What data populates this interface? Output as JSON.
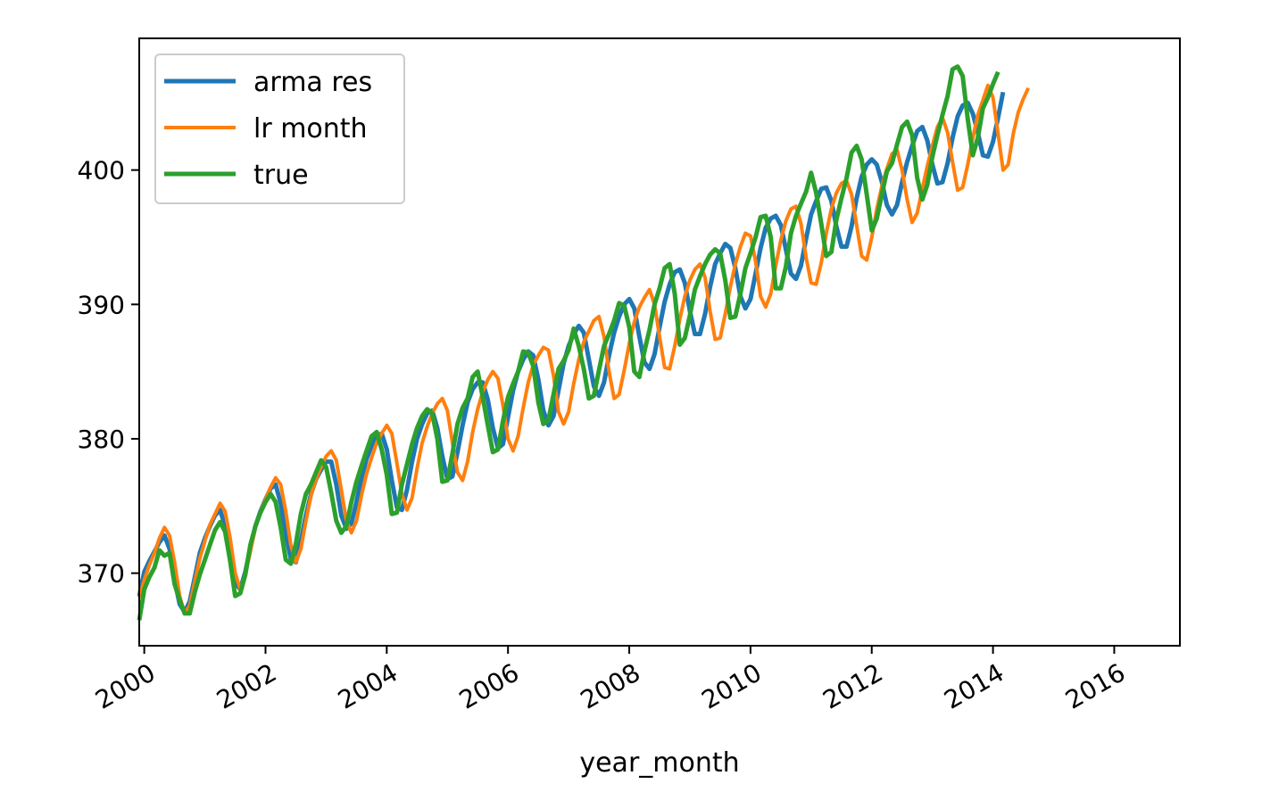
{
  "chart_data": {
    "type": "line",
    "title": "",
    "xlabel": "year_month",
    "ylabel": "",
    "x_unit": "year",
    "xlim": [
      1999.917,
      2017.083
    ],
    "ylim": [
      364.6,
      409.8
    ],
    "x_ticks": [
      {
        "value": 2000,
        "label": "2000"
      },
      {
        "value": 2002,
        "label": "2002"
      },
      {
        "value": 2004,
        "label": "2004"
      },
      {
        "value": 2006,
        "label": "2006"
      },
      {
        "value": 2008,
        "label": "2008"
      },
      {
        "value": 2010,
        "label": "2010"
      },
      {
        "value": 2012,
        "label": "2012"
      },
      {
        "value": 2014,
        "label": "2014"
      },
      {
        "value": 2016,
        "label": "2016"
      }
    ],
    "y_ticks": [
      {
        "value": 370,
        "label": "370"
      },
      {
        "value": 380,
        "label": "380"
      },
      {
        "value": 390,
        "label": "390"
      },
      {
        "value": 400,
        "label": "400"
      }
    ],
    "grid": false,
    "legend": "top-left",
    "x_start": 1999.917,
    "x_step": 0.0833333,
    "series": [
      {
        "name": "arma res",
        "color": "#1f77b4",
        "width": 5,
        "values": [
          368.3,
          370.1,
          370.9,
          371.6,
          372.3,
          372.8,
          371.8,
          369.5,
          367.7,
          367.1,
          367.9,
          369.7,
          371.5,
          372.6,
          373.5,
          374.3,
          374.7,
          373.5,
          371.2,
          369.3,
          368.8,
          370.1,
          371.9,
          373.5,
          374.6,
          375.5,
          376.3,
          376.6,
          375.2,
          372.9,
          371.1,
          370.8,
          372.4,
          374.3,
          375.9,
          377.0,
          377.7,
          378.3,
          378.3,
          376.6,
          374.3,
          373.3,
          373.7,
          375.3,
          377.1,
          378.5,
          379.5,
          380.2,
          380.4,
          379.2,
          376.9,
          374.9,
          374.7,
          376.2,
          378.3,
          380.0,
          381.1,
          381.9,
          382.1,
          380.8,
          378.7,
          377.0,
          377.2,
          379.0,
          381.0,
          382.7,
          383.7,
          384.2,
          384.2,
          382.9,
          380.8,
          379.3,
          379.6,
          381.6,
          383.6,
          385.0,
          385.9,
          386.5,
          386.2,
          384.4,
          382.1,
          381.0,
          381.7,
          383.6,
          385.6,
          386.9,
          387.8,
          388.4,
          387.9,
          385.9,
          383.9,
          383.2,
          384.2,
          386.2,
          387.9,
          389.1,
          390.0,
          390.4,
          389.7,
          387.6,
          385.7,
          385.2,
          386.3,
          388.3,
          390.2,
          391.5,
          392.4,
          392.6,
          391.6,
          389.5,
          387.8,
          387.8,
          389.3,
          391.3,
          393.0,
          393.8,
          394.5,
          394.2,
          392.7,
          390.6,
          389.7,
          390.4,
          392.3,
          394.2,
          395.7,
          396.4,
          396.6,
          395.9,
          394.1,
          392.3,
          391.9,
          392.9,
          394.9,
          396.7,
          397.7,
          398.6,
          398.7,
          397.7,
          395.8,
          394.3,
          394.3,
          395.8,
          397.9,
          399.5,
          400.4,
          400.8,
          400.4,
          399.1,
          397.4,
          396.7,
          397.4,
          399.1,
          400.6,
          401.8,
          402.9,
          403.2,
          402.2,
          400.4,
          399.0,
          399.1,
          400.5,
          402.4,
          404.0,
          404.8,
          405.0,
          404.2,
          402.8,
          401.1,
          401.0,
          402.1,
          403.9,
          405.8
        ]
      },
      {
        "name": "lr month",
        "color": "#ff7f0e",
        "width": 4,
        "values": [
          368.2,
          369.5,
          370.6,
          371.5,
          372.6,
          373.4,
          372.8,
          370.8,
          368.3,
          367.0,
          367.6,
          369.4,
          371.1,
          372.4,
          373.6,
          374.4,
          375.2,
          374.6,
          372.6,
          370.0,
          368.8,
          369.9,
          371.6,
          373.4,
          374.6,
          375.5,
          376.4,
          377.1,
          376.6,
          374.6,
          372.1,
          370.8,
          371.8,
          373.9,
          375.8,
          377.0,
          377.9,
          378.7,
          379.1,
          378.4,
          376.2,
          373.9,
          373.0,
          373.9,
          375.8,
          377.4,
          378.6,
          379.7,
          380.4,
          381.0,
          380.4,
          378.2,
          375.9,
          374.7,
          375.6,
          377.8,
          379.7,
          380.9,
          381.9,
          382.6,
          383.0,
          382.1,
          379.7,
          377.5,
          376.9,
          378.3,
          380.5,
          382.2,
          383.5,
          384.4,
          385.0,
          384.5,
          382.5,
          380.0,
          379.1,
          380.2,
          382.3,
          384.2,
          385.5,
          386.2,
          386.8,
          386.6,
          384.7,
          382.0,
          381.1,
          382.0,
          384.1,
          385.9,
          387.2,
          388.0,
          388.8,
          389.1,
          387.6,
          385.0,
          383.0,
          383.3,
          385.1,
          387.1,
          388.7,
          389.8,
          390.5,
          391.1,
          390.0,
          387.6,
          385.3,
          385.2,
          386.9,
          388.9,
          390.6,
          391.8,
          392.6,
          393.0,
          392.0,
          389.5,
          387.4,
          387.5,
          389.3,
          391.3,
          393.0,
          394.3,
          395.3,
          395.1,
          393.2,
          390.6,
          389.8,
          390.8,
          392.9,
          394.8,
          396.2,
          397.1,
          397.3,
          396.0,
          393.5,
          391.6,
          391.5,
          393.1,
          395.3,
          397.1,
          398.3,
          399.0,
          399.2,
          398.2,
          395.9,
          393.6,
          393.3,
          395.0,
          397.1,
          398.8,
          400.1,
          401.2,
          401.5,
          400.0,
          397.8,
          396.1,
          396.8,
          398.6,
          400.3,
          401.8,
          403.2,
          403.9,
          402.8,
          400.6,
          398.5,
          398.7,
          400.4,
          402.4,
          404.1,
          405.2,
          406.3,
          405.4,
          402.7,
          400.0,
          400.4,
          402.7,
          404.3,
          405.3,
          406.1
        ]
      },
      {
        "name": "true",
        "color": "#2ca02c",
        "width": 5,
        "values": [
          366.5,
          368.8,
          369.7,
          370.4,
          371.7,
          371.3,
          371.5,
          369.2,
          368.0,
          367.0,
          367.0,
          368.6,
          369.9,
          371.0,
          372.1,
          373.2,
          373.8,
          373.1,
          370.9,
          368.3,
          368.5,
          369.9,
          372.1,
          373.5,
          374.5,
          375.3,
          375.9,
          375.3,
          373.4,
          371.0,
          370.7,
          372.2,
          374.4,
          375.9,
          376.6,
          377.5,
          378.4,
          377.9,
          376.0,
          373.9,
          373.0,
          373.5,
          375.3,
          376.8,
          378.0,
          379.1,
          380.2,
          380.5,
          379.2,
          377.3,
          374.4,
          374.5,
          376.6,
          378.1,
          379.6,
          380.8,
          381.7,
          382.2,
          381.9,
          380.0,
          376.8,
          376.9,
          378.9,
          381.1,
          382.3,
          383.0,
          384.6,
          385.0,
          383.1,
          381.0,
          379.0,
          379.2,
          381.3,
          383.1,
          384.1,
          385.0,
          386.5,
          386.4,
          385.4,
          382.7,
          381.1,
          381.4,
          383.3,
          385.2,
          385.8,
          386.6,
          388.2,
          386.9,
          385.2,
          383.0,
          383.2,
          385.1,
          386.9,
          387.8,
          388.8,
          390.1,
          389.9,
          388.3,
          385.0,
          384.6,
          386.5,
          388.1,
          390.0,
          391.2,
          392.7,
          393.0,
          390.8,
          387.0,
          387.5,
          389.2,
          391.1,
          392.1,
          393.0,
          393.7,
          394.1,
          393.8,
          391.8,
          389.0,
          389.1,
          390.8,
          392.7,
          393.8,
          395.0,
          396.5,
          396.6,
          395.0,
          391.2,
          391.2,
          392.8,
          395.3,
          396.6,
          397.5,
          398.4,
          399.8,
          398.3,
          396.0,
          393.6,
          393.9,
          396.3,
          397.9,
          399.4,
          401.3,
          401.8,
          400.8,
          398.2,
          395.5,
          396.4,
          398.2,
          399.9,
          400.5,
          401.9,
          403.2,
          403.6,
          402.6,
          399.4,
          397.8,
          398.9,
          401.0,
          402.6,
          404.1,
          405.5,
          407.5,
          407.7,
          407.0,
          403.8,
          401.1,
          402.4,
          404.6,
          405.4,
          406.4,
          407.3
        ]
      }
    ]
  }
}
